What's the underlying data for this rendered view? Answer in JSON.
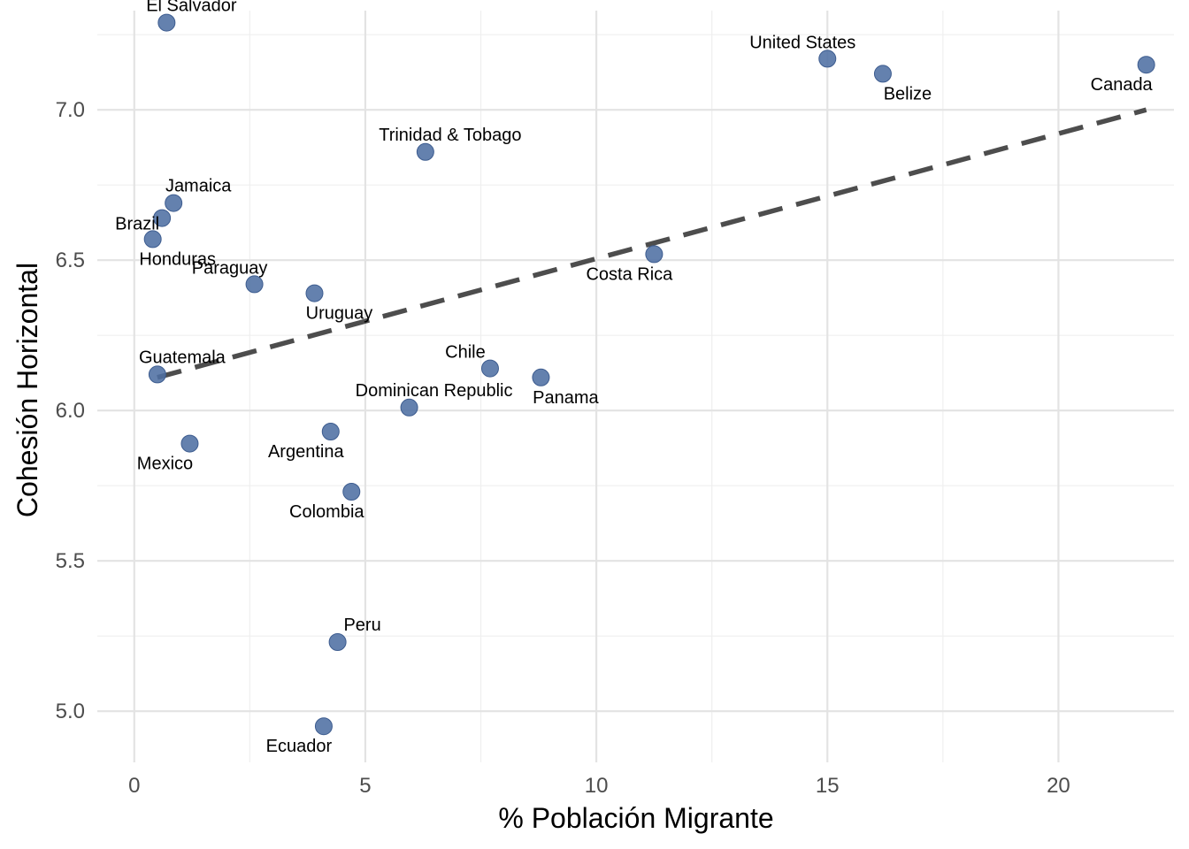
{
  "chart_data": {
    "type": "scatter",
    "xlabel": "% Población Migrante",
    "ylabel": "Cohesión Horizontal",
    "xlim": [
      -0.8,
      22.5
    ],
    "ylim": [
      4.83,
      7.33
    ],
    "x_ticks": [
      0,
      5,
      10,
      15,
      20
    ],
    "x_tick_labels": [
      "0",
      "5",
      "10",
      "15",
      "20"
    ],
    "y_ticks": [
      5.0,
      5.5,
      6.0,
      6.5,
      7.0
    ],
    "y_tick_labels": [
      "5.0",
      "5.5",
      "6.0",
      "6.5",
      "7.0"
    ],
    "grid": true,
    "point_color": "#4e6fa3",
    "trend_color": "#4d4d4d",
    "trend_line": {
      "type": "linear",
      "x": [
        0.5,
        21.9
      ],
      "y": [
        6.11,
        7.0
      ]
    },
    "points": [
      {
        "label": "El Salvador",
        "x": 0.7,
        "y": 7.29,
        "label_pos": "above-right"
      },
      {
        "label": "United States",
        "x": 15.0,
        "y": 7.17,
        "label_pos": "above-left"
      },
      {
        "label": "Belize",
        "x": 16.2,
        "y": 7.12,
        "label_pos": "below-right"
      },
      {
        "label": "Canada",
        "x": 21.9,
        "y": 7.15,
        "label_pos": "below-left"
      },
      {
        "label": "Trinidad & Tobago",
        "x": 6.3,
        "y": 6.86,
        "label_pos": "above-right"
      },
      {
        "label": "Jamaica",
        "x": 0.85,
        "y": 6.69,
        "label_pos": "above-right"
      },
      {
        "label": "Brazil",
        "x": 0.6,
        "y": 6.64,
        "label_pos": "left"
      },
      {
        "label": "Honduras",
        "x": 0.4,
        "y": 6.57,
        "label_pos": "below-right"
      },
      {
        "label": "Paraguay",
        "x": 2.6,
        "y": 6.42,
        "label_pos": "above-left"
      },
      {
        "label": "Uruguay",
        "x": 3.9,
        "y": 6.39,
        "label_pos": "below-right"
      },
      {
        "label": "Costa Rica",
        "x": 11.25,
        "y": 6.52,
        "label_pos": "below-left"
      },
      {
        "label": "Guatemala",
        "x": 0.5,
        "y": 6.12,
        "label_pos": "above-right"
      },
      {
        "label": "Chile",
        "x": 7.7,
        "y": 6.14,
        "label_pos": "above-left"
      },
      {
        "label": "Panama",
        "x": 8.8,
        "y": 6.11,
        "label_pos": "below-right"
      },
      {
        "label": "Dominican Republic",
        "x": 5.95,
        "y": 6.01,
        "label_pos": "above-right"
      },
      {
        "label": "Argentina",
        "x": 4.25,
        "y": 5.93,
        "label_pos": "below-left"
      },
      {
        "label": "Mexico",
        "x": 1.2,
        "y": 5.89,
        "label_pos": "below-left"
      },
      {
        "label": "Colombia",
        "x": 4.7,
        "y": 5.73,
        "label_pos": "below-left"
      },
      {
        "label": "Peru",
        "x": 4.4,
        "y": 5.23,
        "label_pos": "above-right"
      },
      {
        "label": "Ecuador",
        "x": 4.1,
        "y": 4.95,
        "label_pos": "below-left"
      }
    ]
  }
}
